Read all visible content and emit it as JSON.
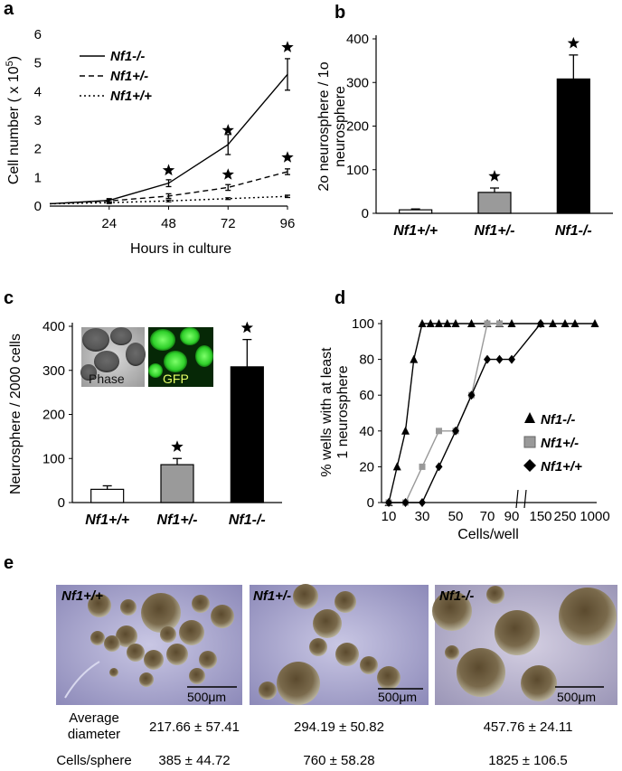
{
  "panels": {
    "a": "a",
    "b": "b",
    "c": "c",
    "d": "d",
    "e": "e"
  },
  "chart_data": [
    {
      "id": "a",
      "type": "line",
      "ylabel_pre": "Cell number ( x 10",
      "ylabel_sup": "5",
      "ylabel_post": ")",
      "xlabel": "Hours in culture",
      "x": [
        0,
        24,
        48,
        72,
        96
      ],
      "xticks": [
        "24",
        "48",
        "72",
        "96"
      ],
      "yticks": [
        "0",
        "1",
        "2",
        "3",
        "4",
        "5",
        "6"
      ],
      "ylim": [
        0,
        6
      ],
      "series": [
        {
          "name": "Nf1-/-",
          "values": [
            0.08,
            0.2,
            0.8,
            2.15,
            4.6
          ],
          "err": [
            0.02,
            0.06,
            0.12,
            0.35,
            0.55
          ],
          "style": "solid"
        },
        {
          "name": "Nf1+/-",
          "values": [
            0.08,
            0.18,
            0.35,
            0.65,
            1.2
          ],
          "err": [
            0.02,
            0.05,
            0.08,
            0.1,
            0.1
          ],
          "style": "dashed"
        },
        {
          "name": "Nf1+/+",
          "values": [
            0.08,
            0.12,
            0.18,
            0.26,
            0.34
          ],
          "err": [
            0.02,
            0.03,
            0.03,
            0.03,
            0.04
          ],
          "style": "dotted"
        }
      ],
      "stars": [
        {
          "x": 48,
          "y": 1.25
        },
        {
          "x": 72,
          "y": 2.65
        },
        {
          "x": 72,
          "y": 1.1
        },
        {
          "x": 96,
          "y": 5.55
        },
        {
          "x": 96,
          "y": 1.7
        }
      ]
    },
    {
      "id": "b",
      "type": "bar",
      "ylabel_line1": "2o neurosphere / 1o",
      "ylabel_line2": "neurosphere",
      "categories": [
        "Nf1+/+",
        "Nf1+/-",
        "Nf1-/-"
      ],
      "values": [
        8,
        48,
        308
      ],
      "err": [
        2,
        10,
        55
      ],
      "colors": [
        "#ffffff",
        "#9a9a9a",
        "#000000"
      ],
      "stars": [
        false,
        true,
        true
      ],
      "yticks": [
        "0",
        "100",
        "200",
        "300",
        "400"
      ],
      "ylim": [
        0,
        400
      ]
    },
    {
      "id": "c",
      "type": "bar",
      "ylabel": "Neurosphere / 2000 cells",
      "categories": [
        "Nf1+/+",
        "Nf1+/-",
        "Nf1-/-"
      ],
      "values": [
        30,
        86,
        308
      ],
      "err": [
        8,
        14,
        62
      ],
      "colors": [
        "#ffffff",
        "#9a9a9a",
        "#000000"
      ],
      "stars": [
        false,
        true,
        true
      ],
      "yticks": [
        "0",
        "100",
        "200",
        "300",
        "400"
      ],
      "ylim": [
        0,
        400
      ],
      "inset": {
        "phase_label": "Phase",
        "gfp_label": "GFP"
      }
    },
    {
      "id": "d",
      "type": "line",
      "ylabel_line1": "% wells with at least",
      "ylabel_line2": "1 neurosphere",
      "xlabel": "Cells/well",
      "xticks": [
        "10",
        "30",
        "50",
        "70",
        "90",
        "150",
        "250",
        "1000"
      ],
      "yticks": [
        "0",
        "20",
        "40",
        "60",
        "80",
        "100"
      ],
      "ylim": [
        0,
        100
      ],
      "series": [
        {
          "name": "Nf1-/-",
          "marker": "triangle",
          "color": "#000000",
          "x": [
            10,
            15,
            20,
            25,
            30,
            35,
            40,
            45,
            50,
            60,
            70,
            80,
            90,
            150,
            200,
            250,
            500,
            1000
          ],
          "values": [
            0,
            20,
            40,
            80,
            100,
            100,
            100,
            100,
            100,
            100,
            100,
            100,
            100,
            100,
            100,
            100,
            100,
            100
          ]
        },
        {
          "name": "Nf1+/-",
          "marker": "square",
          "color": "#999999",
          "x": [
            10,
            20,
            30,
            40,
            50,
            60,
            70,
            80
          ],
          "values": [
            0,
            0,
            20,
            40,
            40,
            60,
            100,
            100
          ]
        },
        {
          "name": "Nf1+/+",
          "marker": "diamond",
          "color": "#000000",
          "x": [
            10,
            20,
            30,
            40,
            50,
            60,
            70,
            80,
            90,
            150
          ],
          "values": [
            0,
            0,
            0,
            20,
            40,
            60,
            80,
            80,
            80,
            100
          ]
        }
      ]
    }
  ],
  "photos": [
    {
      "label": "Nf1+/+",
      "scale": "500μm"
    },
    {
      "label": "Nf1+/-",
      "scale": "500μm"
    },
    {
      "label": "Nf1-/-",
      "scale": "500μm"
    }
  ],
  "table": {
    "rows": [
      {
        "label_line1": "Average",
        "label_line2": "diameter",
        "values": [
          "217.66 ± 57.41",
          "294.19 ± 50.82",
          "457.76 ± 24.11"
        ]
      },
      {
        "label": "Cells/sphere",
        "values": [
          "385 ± 44.72",
          "760 ± 58.28",
          "1825 ± 106.5"
        ]
      }
    ]
  }
}
